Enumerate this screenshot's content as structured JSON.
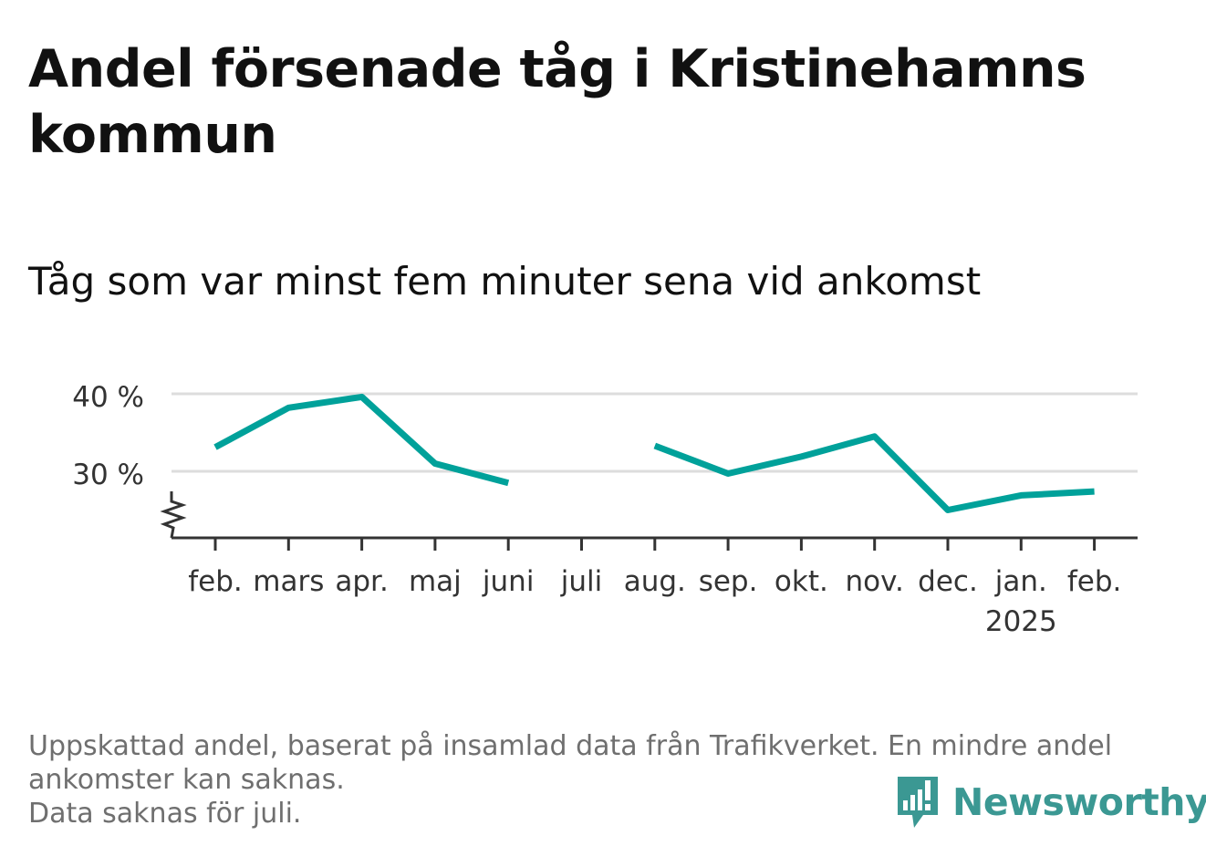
{
  "header": {
    "title": "Andel försenade tåg i Kristinehamns kommun",
    "subtitle": "Tåg som var minst fem minuter sena vid ankomst"
  },
  "chart_data": {
    "type": "line",
    "title": "Andel försenade tåg i Kristinehamns kommun",
    "subtitle": "Tåg som var minst fem minuter sena vid ankomst",
    "xlabel": "",
    "ylabel": "",
    "categories": [
      "feb.",
      "mars",
      "apr.",
      "maj",
      "juni",
      "juli",
      "aug.",
      "sep.",
      "okt.",
      "nov.",
      "dec.",
      "jan.",
      "feb."
    ],
    "year_labels": [
      "",
      "",
      "",
      "",
      "",
      "",
      "",
      "",
      "",
      "",
      "",
      "2025",
      ""
    ],
    "series": [
      {
        "values": [
          33.1,
          38.2,
          39.6,
          31.0,
          28.5,
          null,
          33.3,
          29.7,
          31.9,
          34.5,
          25.0,
          26.9,
          27.4
        ]
      }
    ],
    "yticks": [
      30,
      40
    ],
    "ytick_labels": [
      "30 %",
      "40 %"
    ],
    "ylim": [
      21.5,
      41
    ],
    "axis_break": true,
    "grid": true,
    "colors": {
      "line": "#00a19a",
      "grid": "#dddddd",
      "axis": "#333333"
    }
  },
  "footnote": {
    "line1": "Uppskattad andel, baserat på insamlad data från Trafikverket. En mindre andel",
    "line2": "ankomster kan saknas.",
    "line3": "Data saknas för juli."
  },
  "brand": {
    "name": "Newsworthy",
    "icon": "bar-chart-speech-icon",
    "color": "#3b9893"
  }
}
